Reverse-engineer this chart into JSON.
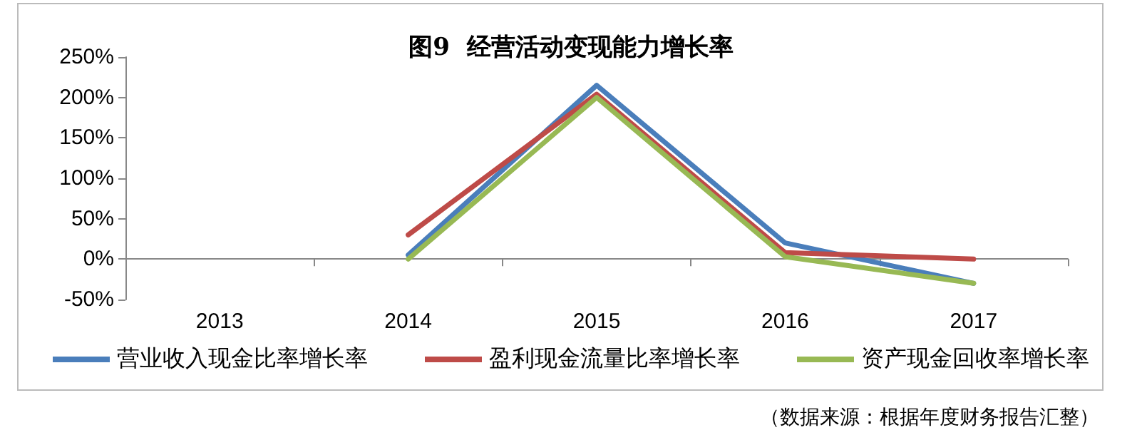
{
  "chart_data": {
    "type": "line",
    "title": "图9  经营活动变现能力增长率",
    "categories": [
      "2013",
      "2014",
      "2015",
      "2016",
      "2017"
    ],
    "series": [
      {
        "name": "营业收入现金比率增长率",
        "color": "#4a7ebb",
        "values": [
          null,
          5,
          215,
          20,
          -30
        ]
      },
      {
        "name": "盈利现金流量比率增长率",
        "color": "#be4b48",
        "values": [
          null,
          30,
          204,
          8,
          0
        ]
      },
      {
        "name": "资产现金回收率增长率",
        "color": "#98b954",
        "values": [
          null,
          0,
          200,
          3,
          -30
        ]
      }
    ],
    "ylim": [
      -50,
      250
    ],
    "yticks": [
      {
        "value": -50,
        "label": "-50%"
      },
      {
        "value": 0,
        "label": "0%"
      },
      {
        "value": 50,
        "label": "50%"
      },
      {
        "value": 100,
        "label": "100%"
      },
      {
        "value": 150,
        "label": "150%"
      },
      {
        "value": 200,
        "label": "200%"
      },
      {
        "value": 250,
        "label": "250%"
      }
    ],
    "grid": false,
    "legend": "bottom",
    "marker": "none",
    "line_style": "solid",
    "annotations": [
      "（数据来源：根据年度财务报告汇整）"
    ]
  }
}
